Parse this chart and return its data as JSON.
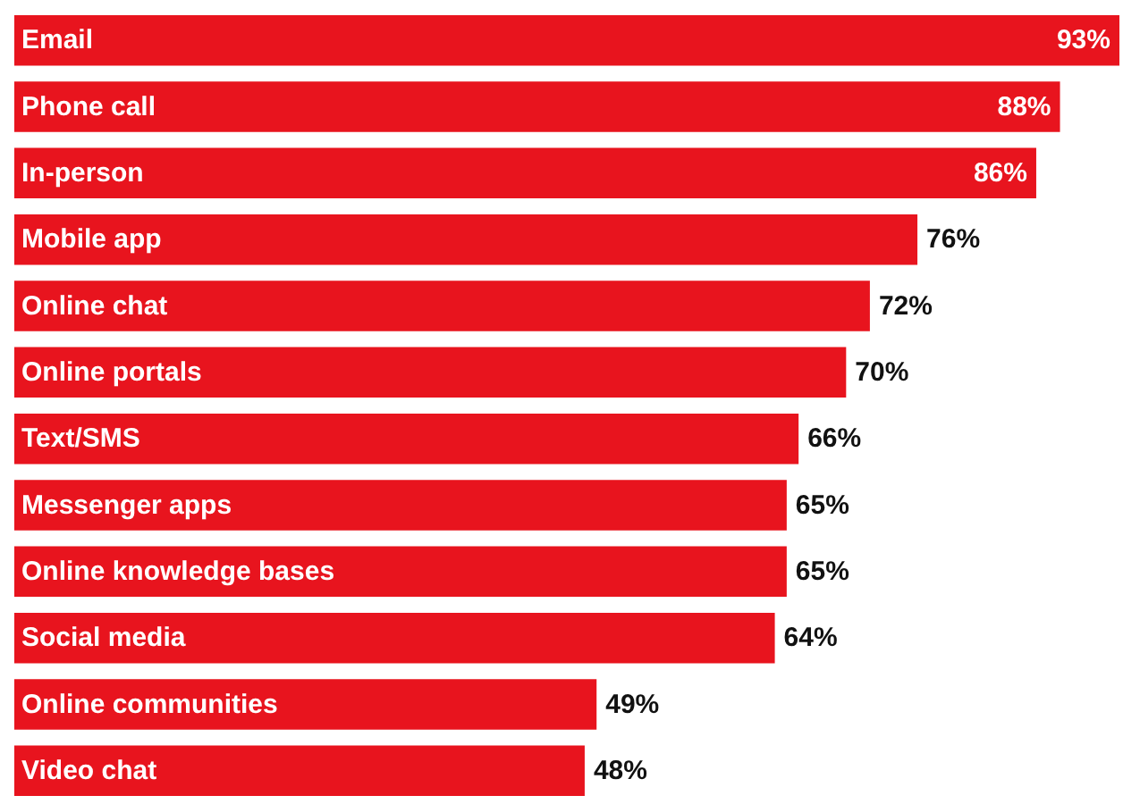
{
  "chart_data": {
    "type": "bar",
    "orientation": "horizontal",
    "categories": [
      "Email",
      "Phone call",
      "In-person",
      "Mobile app",
      "Online chat",
      "Online portals",
      "Text/SMS",
      "Messenger apps",
      "Online knowledge bases",
      "Social media",
      "Online communities",
      "Video chat"
    ],
    "values": [
      93,
      88,
      86,
      76,
      72,
      70,
      66,
      65,
      65,
      64,
      49,
      48
    ],
    "value_labels": [
      "93%",
      "88%",
      "86%",
      "76%",
      "72%",
      "70%",
      "66%",
      "65%",
      "65%",
      "64%",
      "49%",
      "48%"
    ],
    "color": "#e8141e"
  }
}
